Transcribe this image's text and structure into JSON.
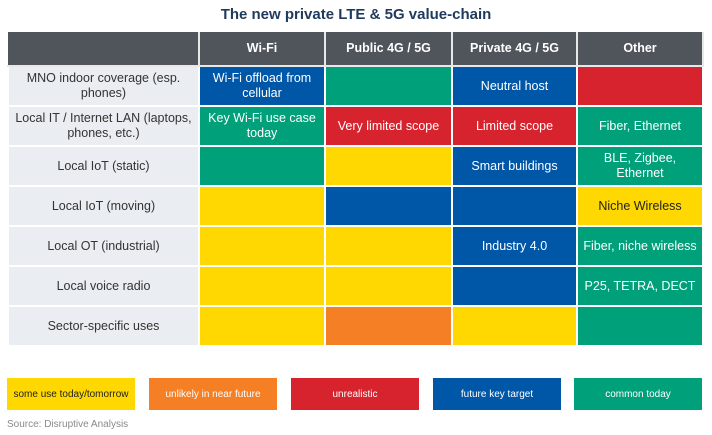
{
  "title": "The new private LTE & 5G value-chain",
  "columns": [
    "",
    "Wi-Fi",
    "Public 4G / 5G",
    "Private 4G / 5G",
    "Other"
  ],
  "colors": {
    "yellow": "#fed800",
    "orange": "#f47f24",
    "red": "#d7232d",
    "blue": "#0056a7",
    "green": "#00a07a",
    "header": "#50545b",
    "row_label_bg": "#eaedf1"
  },
  "rows": [
    {
      "label": "MNO indoor coverage (esp. phones)",
      "cells": [
        {
          "status": "blue",
          "text": "Wi-Fi offload from cellular"
        },
        {
          "status": "green",
          "text": ""
        },
        {
          "status": "blue",
          "text": "Neutral host"
        },
        {
          "status": "red",
          "text": ""
        }
      ]
    },
    {
      "label": "Local IT / Internet LAN (laptops, phones, etc.)",
      "cells": [
        {
          "status": "green",
          "text": "Key Wi-Fi use case today"
        },
        {
          "status": "red",
          "text": "Very limited scope"
        },
        {
          "status": "red",
          "text": "Limited scope"
        },
        {
          "status": "green",
          "text": "Fiber, Ethernet"
        }
      ]
    },
    {
      "label": "Local IoT (static)",
      "cells": [
        {
          "status": "green",
          "text": ""
        },
        {
          "status": "yellow",
          "text": ""
        },
        {
          "status": "blue",
          "text": "Smart buildings"
        },
        {
          "status": "green",
          "text": "BLE, Zigbee, Ethernet"
        }
      ]
    },
    {
      "label": "Local IoT (moving)",
      "cells": [
        {
          "status": "yellow",
          "text": ""
        },
        {
          "status": "blue",
          "text": ""
        },
        {
          "status": "blue",
          "text": ""
        },
        {
          "status": "yellow",
          "text": "Niche Wireless"
        }
      ]
    },
    {
      "label": "Local OT (industrial)",
      "cells": [
        {
          "status": "yellow",
          "text": ""
        },
        {
          "status": "yellow",
          "text": ""
        },
        {
          "status": "blue",
          "text": "Industry 4.0"
        },
        {
          "status": "green",
          "text": "Fiber, niche wireless"
        }
      ]
    },
    {
      "label": "Local voice radio",
      "cells": [
        {
          "status": "yellow",
          "text": ""
        },
        {
          "status": "yellow",
          "text": ""
        },
        {
          "status": "blue",
          "text": ""
        },
        {
          "status": "green",
          "text": "P25, TETRA, DECT"
        }
      ]
    },
    {
      "label": "Sector-specific uses",
      "cells": [
        {
          "status": "yellow",
          "text": ""
        },
        {
          "status": "orange",
          "text": ""
        },
        {
          "status": "yellow",
          "text": ""
        },
        {
          "status": "green",
          "text": ""
        }
      ]
    }
  ],
  "legend": [
    {
      "status": "yellow",
      "label": "some use today/tomorrow"
    },
    {
      "status": "orange",
      "label": "unlikely in near future"
    },
    {
      "status": "red",
      "label": "unrealistic"
    },
    {
      "status": "blue",
      "label": "future key target"
    },
    {
      "status": "green",
      "label": "common today"
    }
  ],
  "source": "Source: Disruptive Analysis"
}
